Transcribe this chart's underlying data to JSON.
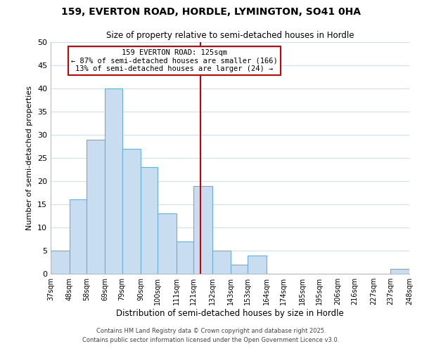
{
  "title": "159, EVERTON ROAD, HORDLE, LYMINGTON, SO41 0HA",
  "subtitle": "Size of property relative to semi-detached houses in Hordle",
  "xlabel": "Distribution of semi-detached houses by size in Hordle",
  "ylabel": "Number of semi-detached properties",
  "bar_edges": [
    37,
    48,
    58,
    69,
    79,
    90,
    100,
    111,
    121,
    132,
    143,
    153,
    164,
    174,
    185,
    195,
    206,
    216,
    227,
    237,
    248
  ],
  "bar_heights": [
    5,
    16,
    29,
    40,
    27,
    23,
    13,
    7,
    19,
    5,
    2,
    4,
    0,
    0,
    0,
    0,
    0,
    0,
    0,
    1
  ],
  "bar_color": "#c9ddf0",
  "bar_edgecolor": "#6aaed6",
  "vline_x": 125,
  "vline_color": "#cc0000",
  "ylim": [
    0,
    50
  ],
  "yticks": [
    0,
    5,
    10,
    15,
    20,
    25,
    30,
    35,
    40,
    45,
    50
  ],
  "annotation_title": "159 EVERTON ROAD: 125sqm",
  "annotation_line1": "← 87% of semi-detached houses are smaller (166)",
  "annotation_line2": "13% of semi-detached houses are larger (24) →",
  "annotation_box_color": "#ffffff",
  "annotation_box_edgecolor": "#cc0000",
  "footer_line1": "Contains HM Land Registry data © Crown copyright and database right 2025.",
  "footer_line2": "Contains public sector information licensed under the Open Government Licence v3.0.",
  "tick_labels": [
    "37sqm",
    "48sqm",
    "58sqm",
    "69sqm",
    "79sqm",
    "90sqm",
    "100sqm",
    "111sqm",
    "121sqm",
    "132sqm",
    "143sqm",
    "153sqm",
    "164sqm",
    "174sqm",
    "185sqm",
    "195sqm",
    "206sqm",
    "216sqm",
    "227sqm",
    "237sqm",
    "248sqm"
  ],
  "background_color": "#ffffff",
  "grid_color": "#d0dff0"
}
